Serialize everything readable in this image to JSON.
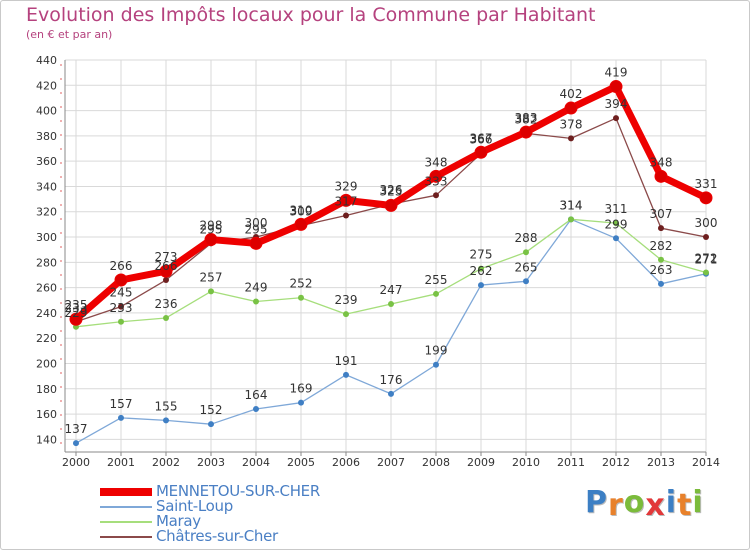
{
  "title": "Evolution des Impôts locaux pour la Commune par Habitant",
  "subtitle": "(en € et par an)",
  "logo": {
    "text": "Proxiti",
    "letters": [
      {
        "ch": "P",
        "color": "#3c7fc4"
      },
      {
        "ch": "r",
        "color": "#e8812b"
      },
      {
        "ch": "o",
        "color": "#7bbb3b"
      },
      {
        "ch": "x",
        "color": "#e2383a"
      },
      {
        "ch": "i",
        "color": "#3c7fc4"
      },
      {
        "ch": "t",
        "color": "#e8812b"
      },
      {
        "ch": "i",
        "color": "#7bbb3b"
      }
    ]
  },
  "chart_data": {
    "type": "line",
    "title": "Evolution des Impôts locaux pour la Commune par Habitant",
    "subtitle": "(en € et par an)",
    "x": [
      2000,
      2001,
      2002,
      2003,
      2004,
      2005,
      2006,
      2007,
      2008,
      2009,
      2010,
      2011,
      2012,
      2013,
      2014
    ],
    "ylim": [
      130,
      440
    ],
    "yticks": [
      140,
      160,
      180,
      200,
      220,
      240,
      260,
      280,
      300,
      320,
      340,
      360,
      380,
      400,
      420,
      440
    ],
    "grid": true,
    "legend_position": "bottom-left",
    "series": [
      {
        "name": "MENNETOU-SUR-CHER",
        "color": "#ee0000",
        "marker_color": "#dd0000",
        "style": "thick",
        "values": [
          235,
          266,
          273,
          298,
          295,
          310,
          329,
          325,
          348,
          367,
          383,
          402,
          419,
          348,
          331
        ]
      },
      {
        "name": "Saint-Loup",
        "color": "#7fa8d8",
        "marker_color": "#3f7fc4",
        "style": "thin",
        "values": [
          137,
          157,
          155,
          152,
          164,
          169,
          191,
          176,
          199,
          262,
          265,
          314,
          299,
          263,
          271
        ]
      },
      {
        "name": "Maray",
        "color": "#a6de7c",
        "marker_color": "#79c245",
        "style": "thin",
        "values": [
          229,
          233,
          236,
          257,
          249,
          252,
          239,
          247,
          255,
          275,
          288,
          314,
          311,
          282,
          272
        ]
      },
      {
        "name": "Châtres-sur-Cher",
        "color": "#8b4a4a",
        "marker_color": "#6e1f1f",
        "style": "thin",
        "values": [
          233,
          245,
          266,
          295,
          300,
          309,
          317,
          326,
          333,
          366,
          382,
          378,
          394,
          307,
          300
        ]
      }
    ]
  }
}
